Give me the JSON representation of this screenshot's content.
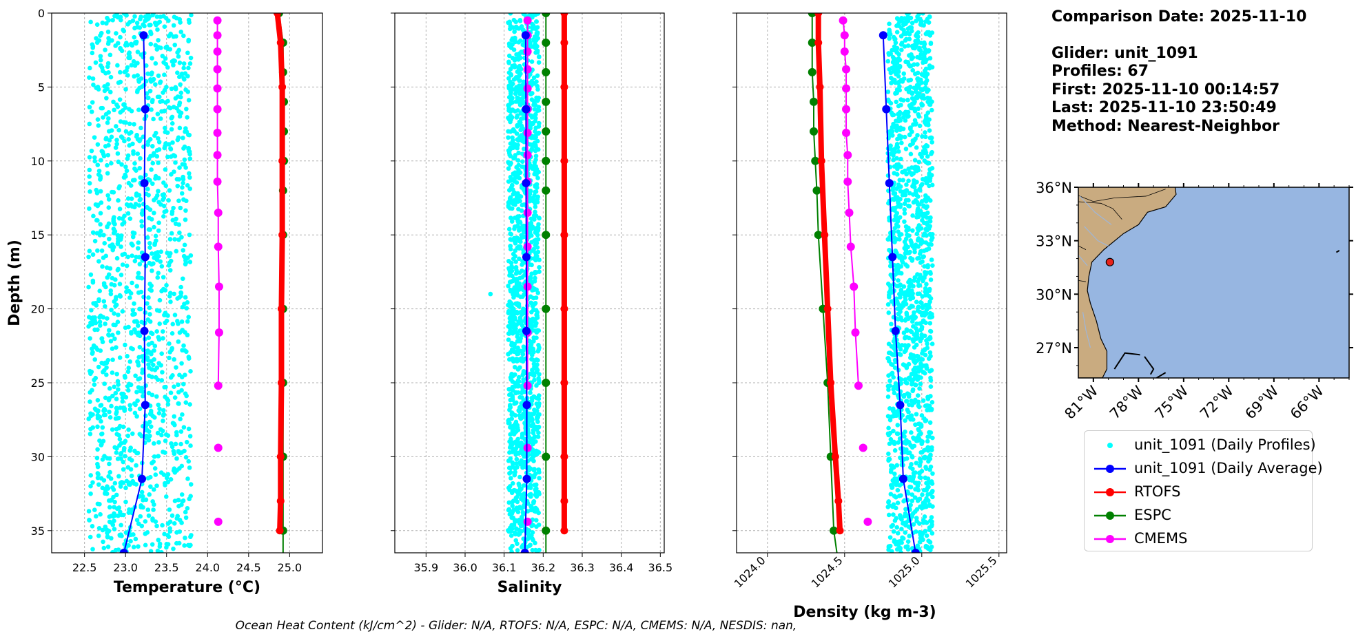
{
  "chart_data": [
    {
      "type": "line",
      "panel": "temperature",
      "xlabel": "Temperature (°C)",
      "ylabel": "Depth (m)",
      "xlim": [
        22.1,
        25.4
      ],
      "ylim": [
        36.5,
        0
      ],
      "xticks": [
        22.5,
        23.0,
        23.5,
        24.0,
        24.5,
        25.0
      ],
      "xtick_labels": [
        "22.5",
        "23.0",
        "23.5",
        "24.0",
        "24.5",
        "25.0"
      ],
      "yticks": [
        0,
        5,
        10,
        15,
        20,
        25,
        30,
        35
      ],
      "ytick_labels": [
        "0",
        "5",
        "10",
        "15",
        "20",
        "25",
        "30",
        "35"
      ],
      "grid": true,
      "scatter": {
        "name": "unit_1091 (Daily Profiles)",
        "x_range": [
          22.55,
          23.8
        ],
        "y_range": [
          0,
          36.5
        ],
        "count": 1400
      },
      "series": [
        {
          "name": "unit_1091 (Daily Average)",
          "x": [
            23.22,
            23.24,
            23.23,
            23.24,
            23.23,
            23.24,
            23.2,
            22.98
          ],
          "y": [
            1.5,
            6.5,
            11.5,
            16.5,
            21.5,
            26.5,
            31.5,
            36.5
          ]
        },
        {
          "name": "RTOFS",
          "x": [
            24.85,
            24.89,
            24.91,
            24.91,
            24.91,
            24.9,
            24.9,
            24.89,
            24.89,
            24.88
          ],
          "y": [
            0,
            2,
            5,
            10,
            15,
            20,
            25,
            30,
            33,
            35
          ]
        },
        {
          "name": "ESPC",
          "x": [
            24.87,
            24.92,
            24.92,
            24.93,
            24.93,
            24.93,
            24.92,
            24.92,
            24.92,
            24.92,
            24.92,
            24.92,
            24.92
          ],
          "y": [
            0,
            2,
            4,
            6,
            8,
            10,
            12,
            15,
            20,
            25,
            30,
            35,
            36.5
          ]
        },
        {
          "name": "CMEMS",
          "x": [
            24.12,
            24.12,
            24.12,
            24.12,
            24.12,
            24.12,
            24.12,
            24.12,
            24.12,
            24.13,
            24.13,
            24.14,
            24.14,
            24.13
          ],
          "y": [
            0.5,
            1.5,
            2.6,
            3.8,
            5.1,
            6.5,
            8.1,
            9.6,
            11.4,
            13.5,
            15.8,
            18.5,
            21.6,
            25.2
          ]
        },
        {
          "name": "CMEMS-tail",
          "x": [
            24.13,
            24.13
          ],
          "y": [
            29.4,
            34.4
          ]
        }
      ]
    },
    {
      "type": "line",
      "panel": "salinity",
      "xlabel": "Salinity",
      "xlim": [
        35.82,
        36.51
      ],
      "ylim": [
        36.5,
        0
      ],
      "xticks": [
        35.9,
        36.0,
        36.1,
        36.2,
        36.3,
        36.4,
        36.5
      ],
      "xtick_labels": [
        "35.9",
        "36.0",
        "36.1",
        "36.2",
        "36.3",
        "36.4",
        "36.5"
      ],
      "grid": true,
      "scatter": {
        "name": "unit_1091 (Daily Profiles)",
        "x_range": [
          36.11,
          36.19
        ],
        "y_range": [
          0,
          36.5
        ],
        "count": 1400,
        "outlier": [
          36.065,
          19.0
        ]
      },
      "series": [
        {
          "name": "unit_1091 (Daily Average)",
          "x": [
            36.155,
            36.156,
            36.156,
            36.157,
            36.157,
            36.158,
            36.158,
            36.153
          ],
          "y": [
            1.5,
            6.5,
            11.5,
            16.5,
            21.5,
            26.5,
            31.5,
            36.5
          ]
        },
        {
          "name": "RTOFS",
          "x": [
            36.254,
            36.254,
            36.254,
            36.254,
            36.254,
            36.254,
            36.254,
            36.254,
            36.254,
            36.254
          ],
          "y": [
            0,
            2,
            5,
            10,
            15,
            20,
            25,
            30,
            33,
            35
          ]
        },
        {
          "name": "ESPC",
          "x": [
            36.207,
            36.207,
            36.207,
            36.207,
            36.207,
            36.207,
            36.207,
            36.207,
            36.207,
            36.207,
            36.207,
            36.207,
            36.207
          ],
          "y": [
            0,
            2,
            4,
            6,
            8,
            10,
            12,
            15,
            20,
            25,
            30,
            35,
            36.5
          ]
        },
        {
          "name": "CMEMS",
          "x": [
            36.16,
            36.16,
            36.16,
            36.16,
            36.16,
            36.16,
            36.16,
            36.16,
            36.16,
            36.16,
            36.16,
            36.16,
            36.16,
            36.16
          ],
          "y": [
            0.5,
            1.5,
            2.6,
            3.8,
            5.1,
            6.5,
            8.1,
            9.6,
            11.4,
            13.5,
            15.8,
            18.5,
            21.6,
            25.2
          ]
        },
        {
          "name": "CMEMS-tail",
          "x": [
            36.16,
            36.16
          ],
          "y": [
            29.4,
            34.4
          ]
        }
      ]
    },
    {
      "type": "line",
      "panel": "density",
      "xlabel": "Density (kg m-3)",
      "xlim": [
        1023.8,
        1025.55
      ],
      "ylim": [
        36.5,
        0
      ],
      "xticks": [
        1024.0,
        1024.5,
        1025.0,
        1025.5
      ],
      "xtick_labels": [
        "1024.0",
        "1024.5",
        "1025.0",
        "1025.5"
      ],
      "grid": true,
      "scatter": {
        "name": "unit_1091 (Daily Profiles)",
        "x_range": [
          1024.78,
          1025.07
        ],
        "y_range": [
          0,
          36.5
        ],
        "count": 1400
      },
      "series": [
        {
          "name": "unit_1091 (Daily Average)",
          "x": [
            1024.75,
            1024.77,
            1024.79,
            1024.81,
            1024.83,
            1024.86,
            1024.88,
            1024.96
          ],
          "y": [
            1.5,
            6.5,
            11.5,
            16.5,
            21.5,
            26.5,
            31.5,
            36.5
          ]
        },
        {
          "name": "RTOFS",
          "x": [
            1024.33,
            1024.33,
            1024.34,
            1024.35,
            1024.37,
            1024.39,
            1024.41,
            1024.44,
            1024.46,
            1024.47
          ],
          "y": [
            0,
            2,
            5,
            10,
            15,
            20,
            25,
            30,
            33,
            35
          ]
        },
        {
          "name": "ESPC",
          "x": [
            1024.29,
            1024.29,
            1024.29,
            1024.3,
            1024.3,
            1024.31,
            1024.32,
            1024.33,
            1024.36,
            1024.39,
            1024.41,
            1024.43,
            1024.45
          ],
          "y": [
            0,
            2,
            4,
            6,
            8,
            10,
            12,
            15,
            20,
            25,
            30,
            35,
            36.5
          ]
        },
        {
          "name": "CMEMS",
          "x": [
            1024.49,
            1024.5,
            1024.5,
            1024.51,
            1024.51,
            1024.51,
            1024.51,
            1024.52,
            1024.52,
            1024.53,
            1024.54,
            1024.56,
            1024.57,
            1024.59
          ],
          "y": [
            0.5,
            1.5,
            2.6,
            3.8,
            5.1,
            6.5,
            8.1,
            9.6,
            11.4,
            13.5,
            15.8,
            18.5,
            21.6,
            25.2
          ]
        },
        {
          "name": "CMEMS-tail",
          "x": [
            1024.62,
            1024.65
          ],
          "y": [
            29.4,
            34.4
          ]
        }
      ]
    }
  ],
  "info": {
    "date_line": "Comparison Date: 2025-11-10",
    "glider_line": "Glider: unit_1091",
    "profiles_line": "Profiles: 67",
    "first_line": "First: 2025-11-10 00:14:57",
    "last_line": "Last: 2025-11-10 23:50:49",
    "method_line": "Method: Nearest-Neighbor"
  },
  "map": {
    "lat_ticks": [
      "36°N",
      "33°N",
      "30°N",
      "27°N"
    ],
    "lon_ticks": [
      "81°W",
      "78°W",
      "75°W",
      "72°W",
      "69°W",
      "66°W"
    ],
    "glider_position": {
      "lon": -79.9,
      "lat": 31.8
    },
    "lon_range": [
      -82.0,
      -64.0
    ],
    "lat_range": [
      25.3,
      36.0
    ],
    "ocean_color": "#97b6e1",
    "land_color": "#c9ab80"
  },
  "legend": [
    {
      "label": "unit_1091 (Daily Profiles)",
      "color": "#00ffff",
      "style": "dot"
    },
    {
      "label": "unit_1091 (Daily Average)",
      "color": "#0000ff",
      "style": "line-marker"
    },
    {
      "label": "RTOFS",
      "color": "#ff0000",
      "style": "line-marker"
    },
    {
      "label": "ESPC",
      "color": "#008000",
      "style": "line-marker"
    },
    {
      "label": "CMEMS",
      "color": "#ff00ff",
      "style": "line-marker"
    }
  ],
  "colors": {
    "glider_scatter": "#00ffff",
    "glider_avg": "#0000ff",
    "rtofs": "#ff0000",
    "espc": "#008000",
    "cmems": "#ff00ff"
  },
  "footer": "Ocean Heat Content (kJ/cm^2) - Glider: N/A,  RTOFS: N/A,  ESPC: N/A,  CMEMS: N/A,  NESDIS: nan,"
}
